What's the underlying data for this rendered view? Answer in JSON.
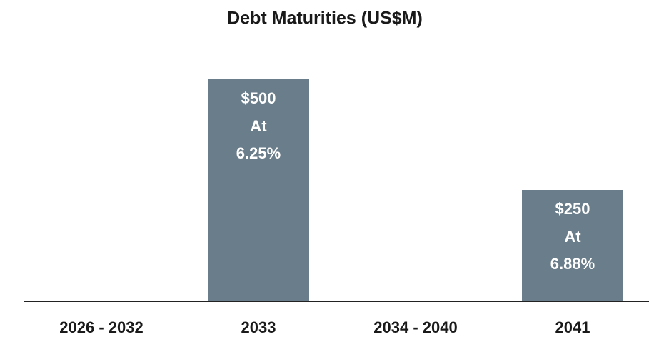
{
  "chart_data": {
    "type": "bar",
    "title": "Debt Maturities (US$M)",
    "categories": [
      "2026 - 2032",
      "2033",
      "2034 - 2040",
      "2041"
    ],
    "values": [
      0,
      500,
      0,
      250
    ],
    "value_labels": [
      null,
      "$500",
      null,
      "$250"
    ],
    "rate_labels": [
      null,
      [
        "At",
        "6.25%"
      ],
      null,
      [
        "At",
        "6.88%"
      ]
    ],
    "color": "#6a7d8a",
    "ylim": [
      0,
      500
    ]
  }
}
